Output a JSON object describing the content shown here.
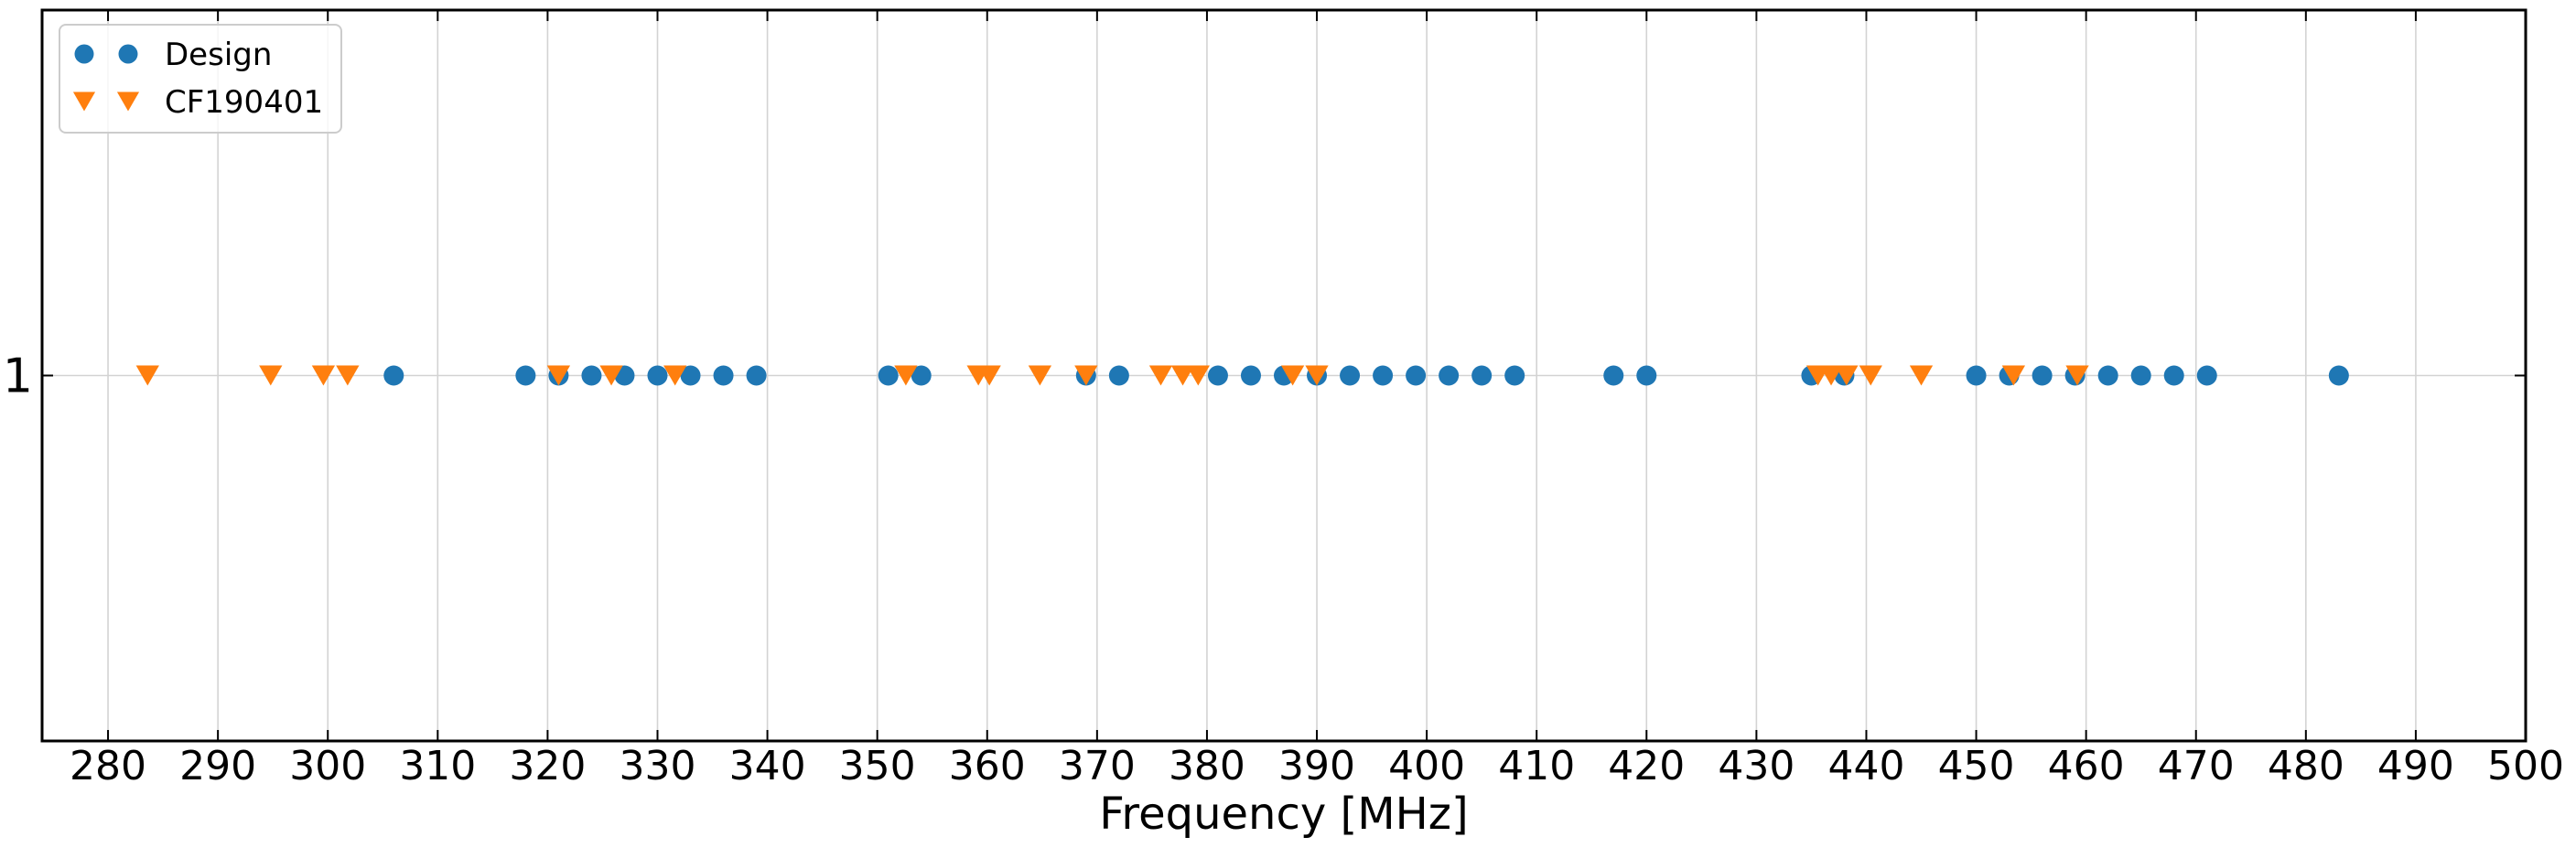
{
  "chart_data": {
    "type": "scatter",
    "title": "",
    "xlabel": "Frequency [MHz]",
    "ylabel": "",
    "xlim": [
      274,
      500
    ],
    "ylim": [
      0.5,
      1.5
    ],
    "x_ticks": [
      280,
      290,
      300,
      310,
      320,
      330,
      340,
      350,
      360,
      370,
      380,
      390,
      400,
      410,
      420,
      430,
      440,
      450,
      460,
      470,
      480,
      490,
      500
    ],
    "y_ticks": [
      1
    ],
    "grid": true,
    "legend_position": "top-left",
    "series": [
      {
        "name": "Design",
        "marker": "circle",
        "color": "#1f77b4",
        "x": [
          306,
          318,
          321,
          324,
          327,
          330,
          333,
          336,
          339,
          351,
          354,
          369,
          372,
          381,
          384,
          387,
          390,
          393,
          396,
          399,
          402,
          405,
          408,
          417,
          420,
          435,
          438,
          450,
          453,
          456,
          459,
          462,
          465,
          468,
          471,
          483
        ],
        "y": 1
      },
      {
        "name": "CF190401",
        "marker": "triangle-down",
        "color": "#ff7f0e",
        "x": [
          283.6,
          294.8,
          299.6,
          301.8,
          321,
          325.8,
          331.6,
          352.6,
          359.2,
          360.2,
          364.8,
          369,
          375.8,
          377.8,
          379.2,
          387.8,
          390,
          435.6,
          436.8,
          438.2,
          440.4,
          445,
          453.4,
          459.2
        ],
        "y": 1
      }
    ]
  }
}
